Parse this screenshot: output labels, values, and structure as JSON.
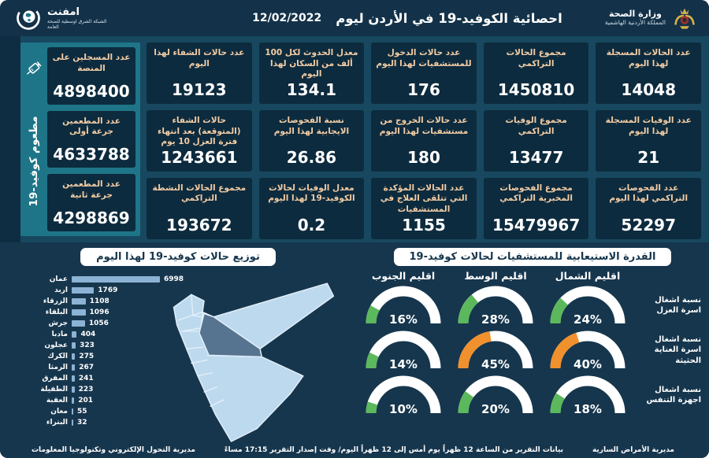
{
  "header": {
    "title": "احصائية الكوفيد-19 في الأردن ليوم",
    "date": "12/02/2022",
    "ministry_name": "وزارة الصحة",
    "ministry_sub": "المملكة الأردنية الهاشمية",
    "logo_text": "امفنت",
    "logo_subtext": "الشبكة الشرق اوسطية للصحة العامة"
  },
  "stats": {
    "cards": [
      {
        "label": "عدد الحالات المسجلة لهذا اليوم",
        "value": "14048"
      },
      {
        "label": "مجموع الحالات التراكمي",
        "value": "1450810"
      },
      {
        "label": "عدد حالات الدخول للمستشفيات لهذا اليوم",
        "value": "176"
      },
      {
        "label": "معدل الحدوث لكل 100 ألف من السكان لهذا اليوم",
        "value": "134.1"
      },
      {
        "label": "عدد حالات الشفاء لهذا اليوم",
        "value": "19123"
      },
      {
        "label": "عدد الوفيات المسجلة لهذا اليوم",
        "value": "21"
      },
      {
        "label": "مجموع الوفيات التراكمي",
        "value": "13477"
      },
      {
        "label": "عدد حالات الخروج من مستشفيات لهذا اليوم",
        "value": "180"
      },
      {
        "label": "نسبة الفحوصات الايجابية لهذا اليوم",
        "value": "26.86"
      },
      {
        "label": "حالات الشفاء (المتوقعة) بعد انتهاء فترة العزل 10 يوم",
        "value": "1243661"
      },
      {
        "label": "عدد الفحوصات التراكمي لهذا اليوم",
        "value": "52297"
      },
      {
        "label": "مجموع الفحوصات المخبرية التراكمي",
        "value": "15479967"
      },
      {
        "label": "عدد الحالات المؤكدة التي تتلقى العلاج في المستشفيات",
        "value": "1155"
      },
      {
        "label": "معدل الوفيات لحالات الكوفيد-19 لهذا اليوم",
        "value": "0.2"
      },
      {
        "label": "مجموع الحالات النشطة التراكمي",
        "value": "193672"
      }
    ]
  },
  "vaccination": {
    "side_label": "مطعوم كوفيد-19",
    "cards": [
      {
        "label": "عدد المسجلين على المنصة",
        "value": "4898400"
      },
      {
        "label": "عدد المطعمين جرعة أولى",
        "value": "4633788"
      },
      {
        "label": "عدد المطعمين جرعة ثانية",
        "value": "4298869"
      }
    ]
  },
  "chart_data": [
    {
      "type": "bar",
      "orientation": "horizontal",
      "title": "توزيع حالات كوفيد-19 لهذا اليوم",
      "categories": [
        "عمان",
        "اربد",
        "الزرقاء",
        "البلقاء",
        "جرش",
        "مادبا",
        "عجلون",
        "الكرك",
        "الرمثا",
        "المفرق",
        "الطفيلة",
        "العقبة",
        "معان",
        "البتراء"
      ],
      "values": [
        6998,
        1769,
        1108,
        1096,
        1056,
        404,
        323,
        275,
        267,
        241,
        223,
        201,
        55,
        32
      ],
      "xlim": [
        0,
        7000
      ],
      "bar_color": "#8cb2d4"
    },
    {
      "type": "gauge-grid",
      "title": "القدرة الاستيعابية للمستشفيات لحالات كوفيد-19",
      "columns": [
        "اقليم الشمال",
        "اقليم الوسط",
        "اقليم الجنوب"
      ],
      "rows": [
        "نسبة اشغال اسرة العزل",
        "نسبة اشغال اسرة العناية الحثيثة",
        "نسبة اشغال اجهزة التنفس"
      ],
      "values": [
        [
          24,
          28,
          16
        ],
        [
          40,
          45,
          14
        ],
        [
          18,
          20,
          10
        ]
      ],
      "unit": "%",
      "colors": {
        "low": "#5cb85c",
        "high": "#f0912d",
        "track": "#ffffff",
        "threshold": 40
      }
    }
  ],
  "map": {
    "region_fill": "#bdd9ee",
    "highlight_fill": "#56748f",
    "border": "#e3eff9"
  },
  "footer": {
    "right": "مديرية الأمراض السارية",
    "center": "بيانات التقرير من الساعة 12 ظهراً يوم أمس إلى 12 ظهراً اليوم/ وقت إصدار التقرير 17:15 مساءً",
    "left": "مديرية التحول الإلكتروني وتكنولوجيا المعلومات"
  }
}
